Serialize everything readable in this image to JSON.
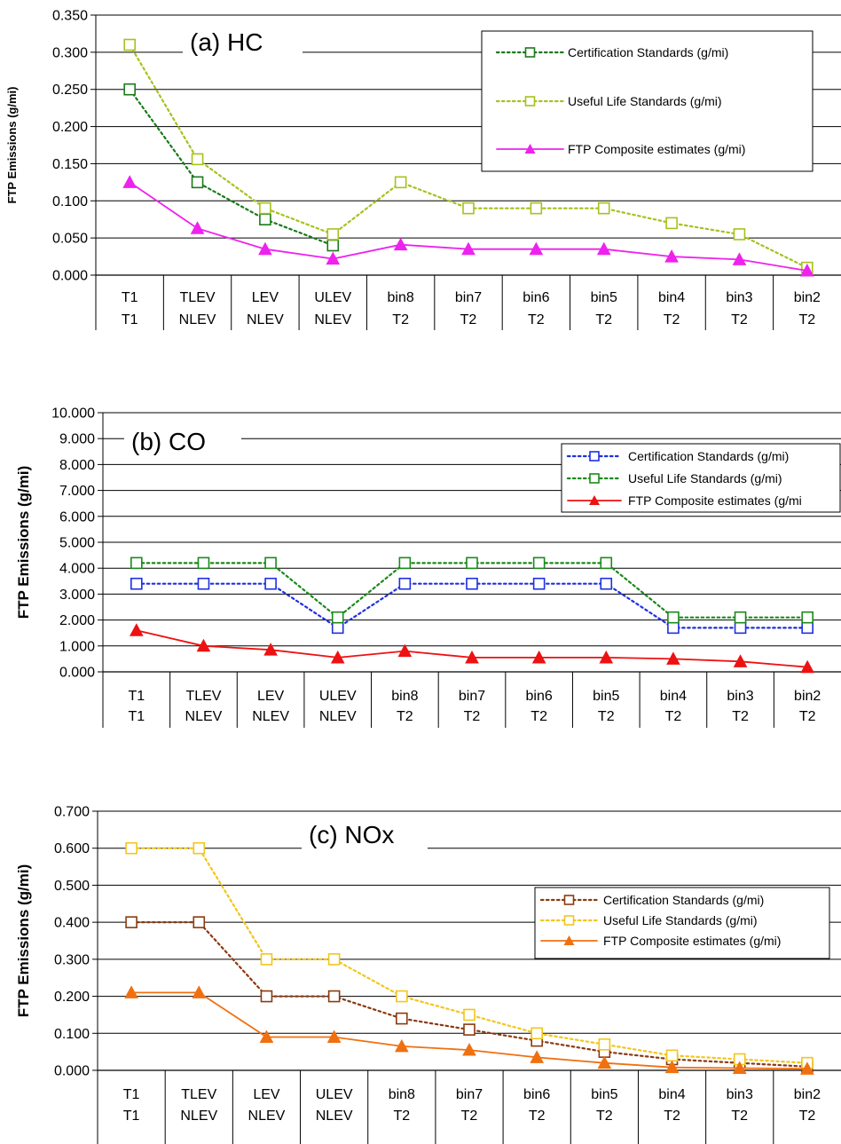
{
  "chart_data": [
    {
      "type": "line",
      "title": "(a) HC",
      "ylabel": "FTP Emissions (g/mi)",
      "ylim": [
        0,
        0.35
      ],
      "yticks": [
        "0.000",
        "0.050",
        "0.100",
        "0.150",
        "0.200",
        "0.250",
        "0.300",
        "0.350"
      ],
      "categories": [
        "T1",
        "TLEV",
        "LEV",
        "ULEV",
        "bin8",
        "bin7",
        "bin6",
        "bin5",
        "bin4",
        "bin3",
        "bin2"
      ],
      "category_groups": [
        "T1",
        "NLEV",
        "NLEV",
        "NLEV",
        "T2",
        "T2",
        "T2",
        "T2",
        "T2",
        "T2",
        "T2"
      ],
      "grid": true,
      "legend": "top-right",
      "series": [
        {
          "name": "Certification Standards (g/mi)",
          "color": "#1a7a1a",
          "line": "dotted",
          "marker": "square",
          "values": [
            0.25,
            0.125,
            0.075,
            0.04,
            null,
            null,
            null,
            null,
            null,
            null,
            null
          ]
        },
        {
          "name": "Useful Life Standards (g/mi)",
          "color": "#a5c21e",
          "line": "dotted",
          "marker": "square",
          "values": [
            0.31,
            0.156,
            0.09,
            0.055,
            0.125,
            0.09,
            0.09,
            0.09,
            0.07,
            0.055,
            0.01
          ]
        },
        {
          "name": "FTP Composite estimates (g/mi)",
          "color": "#ee22ee",
          "line": "solid",
          "marker": "triangle",
          "values": [
            0.125,
            0.063,
            0.035,
            0.022,
            0.041,
            0.035,
            0.035,
            0.035,
            0.025,
            0.021,
            0.006
          ]
        }
      ]
    },
    {
      "type": "line",
      "title": "(b) CO",
      "ylabel": "FTP Emissions (g/mi)",
      "ylim": [
        0,
        10
      ],
      "yticks": [
        "0.000",
        "1.000",
        "2.000",
        "3.000",
        "4.000",
        "5.000",
        "6.000",
        "7.000",
        "8.000",
        "9.000",
        "10.000"
      ],
      "categories": [
        "T1",
        "TLEV",
        "LEV",
        "ULEV",
        "bin8",
        "bin7",
        "bin6",
        "bin5",
        "bin4",
        "bin3",
        "bin2"
      ],
      "category_groups": [
        "T1",
        "NLEV",
        "NLEV",
        "NLEV",
        "T2",
        "T2",
        "T2",
        "T2",
        "T2",
        "T2",
        "T2"
      ],
      "grid": true,
      "legend": "right",
      "series": [
        {
          "name": "Certification Standards (g/mi)",
          "color": "#1f2fe0",
          "line": "dotted",
          "marker": "square",
          "values": [
            3.4,
            3.4,
            3.4,
            1.7,
            3.4,
            3.4,
            3.4,
            3.4,
            1.7,
            1.7,
            1.7
          ]
        },
        {
          "name": "Useful Life Standards (g/mi)",
          "color": "#1a8a1a",
          "line": "dotted",
          "marker": "square",
          "values": [
            4.2,
            4.2,
            4.2,
            2.1,
            4.2,
            4.2,
            4.2,
            4.2,
            2.1,
            2.1,
            2.1
          ]
        },
        {
          "name": "FTP Composite estimates (g/mi",
          "color": "#ee1111",
          "line": "solid",
          "marker": "triangle",
          "values": [
            1.6,
            1.0,
            0.85,
            0.55,
            0.8,
            0.55,
            0.55,
            0.55,
            0.5,
            0.4,
            0.18
          ]
        }
      ]
    },
    {
      "type": "line",
      "title": "(c) NOx",
      "ylabel": "FTP Emissions (g/mi)",
      "ylim": [
        0,
        0.7
      ],
      "yticks": [
        "0.000",
        "0.100",
        "0.200",
        "0.300",
        "0.400",
        "0.500",
        "0.600",
        "0.700"
      ],
      "categories": [
        "T1",
        "TLEV",
        "LEV",
        "ULEV",
        "bin8",
        "bin7",
        "bin6",
        "bin5",
        "bin4",
        "bin3",
        "bin2"
      ],
      "category_groups": [
        "T1",
        "NLEV",
        "NLEV",
        "NLEV",
        "T2",
        "T2",
        "T2",
        "T2",
        "T2",
        "T2",
        "T2"
      ],
      "grid": true,
      "legend": "right",
      "series": [
        {
          "name": "Certification Standards (g/mi)",
          "color": "#8b3a10",
          "line": "dotted",
          "marker": "square",
          "values": [
            0.4,
            0.4,
            0.2,
            0.2,
            0.14,
            0.11,
            0.08,
            0.05,
            0.03,
            0.02,
            0.01
          ]
        },
        {
          "name": "Useful Life Standards (g/mi)",
          "color": "#f2c61c",
          "line": "dotted",
          "marker": "square",
          "values": [
            0.6,
            0.6,
            0.3,
            0.3,
            0.2,
            0.15,
            0.1,
            0.07,
            0.04,
            0.03,
            0.02
          ]
        },
        {
          "name": "FTP Composite estimates (g/mi)",
          "color": "#f07010",
          "line": "solid",
          "marker": "triangle",
          "values": [
            0.21,
            0.21,
            0.09,
            0.09,
            0.065,
            0.055,
            0.035,
            0.02,
            0.008,
            0.006,
            0.004
          ]
        }
      ]
    }
  ]
}
